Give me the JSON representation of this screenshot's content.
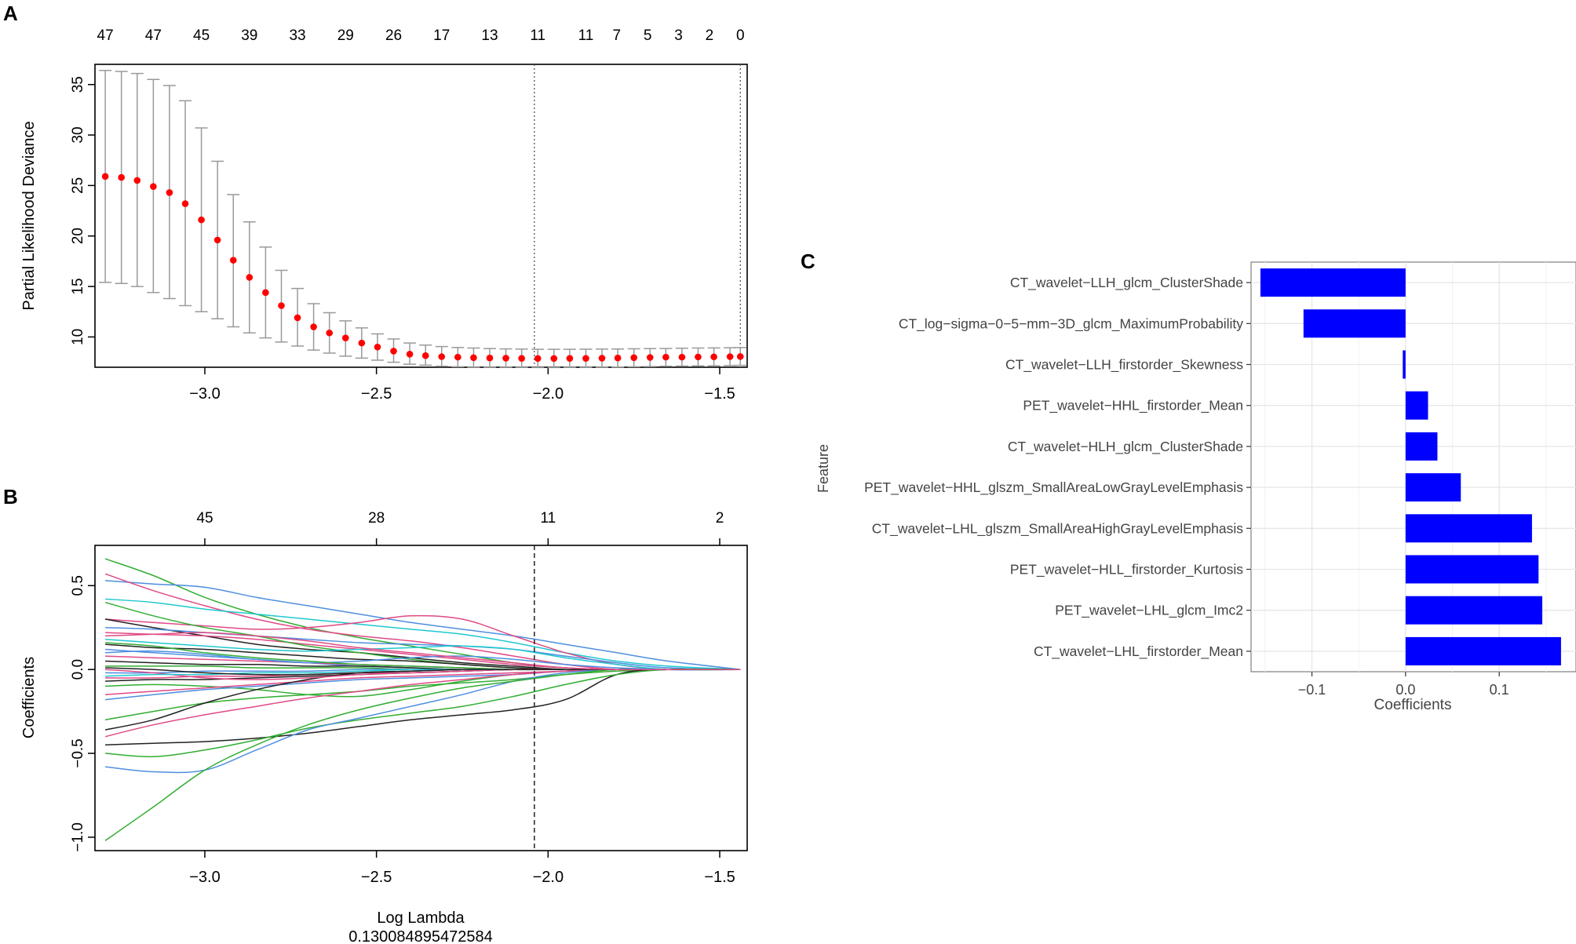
{
  "chart_data": [
    {
      "panel": "A",
      "type": "scatter",
      "subtype": "cross-validation error bars",
      "xlabel": "",
      "ylabel": "Partial Likelihood Deviance",
      "xlim": [
        -3.32,
        -1.42
      ],
      "ylim": [
        7.0,
        37.0
      ],
      "xticks": [
        -3.0,
        -2.5,
        -2.0,
        -1.5
      ],
      "xtick_labels": [
        "−3.0",
        "−2.5",
        "−2.0",
        "−1.5"
      ],
      "yticks": [
        10,
        15,
        20,
        25,
        30,
        35
      ],
      "top_counts": [
        "47",
        "47",
        "45",
        "39",
        "33",
        "29",
        "26",
        "17",
        "13",
        "11",
        "11",
        "7",
        "5",
        "3",
        "2",
        "0"
      ],
      "top_count_x": [
        -3.29,
        -3.15,
        -3.01,
        -2.87,
        -2.73,
        -2.59,
        -2.45,
        -2.31,
        -2.17,
        -2.03,
        -1.89,
        -1.8,
        -1.71,
        -1.62,
        -1.53,
        -1.44
      ],
      "vlines": [
        -2.04,
        -1.44
      ],
      "x": [
        -3.29,
        -3.243,
        -3.197,
        -3.15,
        -3.103,
        -3.057,
        -3.01,
        -2.963,
        -2.917,
        -2.87,
        -2.823,
        -2.777,
        -2.73,
        -2.683,
        -2.637,
        -2.59,
        -2.543,
        -2.497,
        -2.45,
        -2.403,
        -2.357,
        -2.31,
        -2.263,
        -2.217,
        -2.17,
        -2.123,
        -2.077,
        -2.03,
        -1.983,
        -1.937,
        -1.89,
        -1.843,
        -1.797,
        -1.75,
        -1.703,
        -1.657,
        -1.61,
        -1.563,
        -1.517,
        -1.47,
        -1.44
      ],
      "mean": [
        25.9,
        25.8,
        25.5,
        24.9,
        24.3,
        23.2,
        21.6,
        19.6,
        17.6,
        15.9,
        14.4,
        13.1,
        11.9,
        11.0,
        10.4,
        9.9,
        9.4,
        9.0,
        8.6,
        8.3,
        8.15,
        8.05,
        8.0,
        7.95,
        7.92,
        7.9,
        7.88,
        7.87,
        7.87,
        7.88,
        7.88,
        7.9,
        7.92,
        7.95,
        7.97,
        8.0,
        8.0,
        8.02,
        8.03,
        8.05,
        8.06
      ],
      "upper": [
        36.4,
        36.3,
        36.1,
        35.5,
        34.9,
        33.4,
        30.7,
        27.4,
        24.1,
        21.4,
        18.9,
        16.6,
        14.8,
        13.3,
        12.4,
        11.6,
        10.9,
        10.3,
        9.8,
        9.4,
        9.2,
        9.05,
        8.95,
        8.9,
        8.85,
        8.82,
        8.8,
        8.78,
        8.78,
        8.78,
        8.79,
        8.8,
        8.81,
        8.83,
        8.85,
        8.86,
        8.88,
        8.9,
        8.91,
        8.93,
        8.94
      ],
      "lower": [
        15.4,
        15.3,
        15.0,
        14.4,
        13.8,
        13.1,
        12.5,
        11.8,
        11.0,
        10.4,
        9.9,
        9.5,
        9.1,
        8.7,
        8.4,
        8.1,
        7.9,
        7.7,
        7.5,
        7.3,
        7.2,
        7.1,
        7.05,
        7.0,
        7.0,
        7.0,
        6.98,
        6.97,
        6.97,
        6.98,
        6.98,
        7.0,
        7.02,
        7.05,
        7.07,
        7.1,
        7.12,
        7.14,
        7.15,
        7.17,
        7.18
      ]
    },
    {
      "panel": "B",
      "type": "line",
      "subtype": "coefficient paths",
      "xlabel": "Log Lambda",
      "xlabel2": "0.130084895472584",
      "ylabel": "Coefficients",
      "xlim": [
        -3.32,
        -1.42
      ],
      "ylim": [
        -1.08,
        0.74
      ],
      "xticks": [
        -3.0,
        -2.5,
        -2.0,
        -1.5
      ],
      "xtick_labels": [
        "−3.0",
        "−2.5",
        "−2.0",
        "−1.5"
      ],
      "yticks": [
        -1.0,
        -0.5,
        0.0,
        0.5
      ],
      "ytick_labels": [
        "−1.0",
        "−0.5",
        "0.0",
        "0.5"
      ],
      "top_counts": [
        "45",
        "28",
        "11",
        "2"
      ],
      "top_count_x": [
        -3.0,
        -2.5,
        -2.0,
        -1.5
      ],
      "vline": -2.04,
      "x": [
        -3.29,
        -3.15,
        -3.0,
        -2.85,
        -2.7,
        -2.55,
        -2.4,
        -2.25,
        -2.1,
        -1.95,
        -1.8,
        -1.65,
        -1.44
      ],
      "series": [
        {
          "name": "s1",
          "color": "#32ad32",
          "values": [
            0.66,
            0.56,
            0.43,
            0.33,
            0.25,
            0.19,
            0.14,
            0.09,
            0.04,
            0.01,
            0.0,
            0.0,
            0.0
          ]
        },
        {
          "name": "s2",
          "color": "#4e8fe0",
          "values": [
            0.53,
            0.51,
            0.49,
            0.43,
            0.38,
            0.33,
            0.28,
            0.24,
            0.2,
            0.15,
            0.1,
            0.05,
            0.0
          ]
        },
        {
          "name": "s3",
          "color": "#e04a86",
          "values": [
            0.57,
            0.47,
            0.38,
            0.3,
            0.24,
            0.2,
            0.17,
            0.13,
            0.08,
            0.03,
            0.0,
            0.0,
            0.0
          ]
        },
        {
          "name": "s4",
          "color": "#20c8d0",
          "values": [
            0.42,
            0.4,
            0.36,
            0.33,
            0.3,
            0.27,
            0.24,
            0.21,
            0.16,
            0.1,
            0.05,
            0.02,
            0.0
          ]
        },
        {
          "name": "s5",
          "color": "#e04a86",
          "values": [
            0.3,
            0.28,
            0.26,
            0.24,
            0.25,
            0.28,
            0.32,
            0.3,
            0.2,
            0.1,
            0.03,
            0.0,
            0.0
          ]
        },
        {
          "name": "s6",
          "color": "#222222",
          "values": [
            0.3,
            0.25,
            0.2,
            0.15,
            0.12,
            0.1,
            0.07,
            0.04,
            0.02,
            0.0,
            0.0,
            0.0,
            0.0
          ]
        },
        {
          "name": "s7",
          "color": "#4e8fe0",
          "values": [
            0.25,
            0.24,
            0.22,
            0.2,
            0.18,
            0.16,
            0.15,
            0.14,
            0.12,
            0.08,
            0.04,
            0.01,
            0.0
          ]
        },
        {
          "name": "s8",
          "color": "#e04a86",
          "values": [
            0.22,
            0.21,
            0.2,
            0.18,
            0.15,
            0.12,
            0.09,
            0.06,
            0.03,
            0.01,
            0.0,
            0.0,
            0.0
          ]
        },
        {
          "name": "s9",
          "color": "#32ad32",
          "values": [
            0.4,
            0.32,
            0.25,
            0.2,
            0.14,
            0.1,
            0.06,
            0.03,
            0.01,
            0.0,
            0.0,
            0.0,
            0.0
          ]
        },
        {
          "name": "s10",
          "color": "#20c8d0",
          "values": [
            0.18,
            0.16,
            0.14,
            0.12,
            0.11,
            0.12,
            0.13,
            0.14,
            0.12,
            0.07,
            0.03,
            0.0,
            0.0
          ]
        },
        {
          "name": "s11",
          "color": "#222222",
          "values": [
            0.15,
            0.13,
            0.12,
            0.1,
            0.08,
            0.06,
            0.05,
            0.03,
            0.01,
            0.0,
            0.0,
            0.0,
            0.0
          ]
        },
        {
          "name": "s12",
          "color": "#4e8fe0",
          "values": [
            0.12,
            0.1,
            0.08,
            0.06,
            0.04,
            0.02,
            0.01,
            0.0,
            0.0,
            0.0,
            0.0,
            0.0,
            0.0
          ]
        },
        {
          "name": "s13",
          "color": "#e04a86",
          "values": [
            0.08,
            0.07,
            0.06,
            0.05,
            0.04,
            0.03,
            0.02,
            0.01,
            0.0,
            0.0,
            0.0,
            0.0,
            0.0
          ]
        },
        {
          "name": "s14",
          "color": "#222222",
          "values": [
            0.05,
            0.04,
            0.03,
            0.03,
            0.02,
            0.02,
            0.01,
            0.0,
            0.0,
            0.0,
            0.0,
            0.0,
            0.0
          ]
        },
        {
          "name": "s15",
          "color": "#32ad32",
          "values": [
            0.02,
            0.02,
            0.02,
            0.01,
            0.01,
            0.01,
            0.0,
            0.0,
            0.0,
            0.0,
            0.0,
            0.0,
            0.0
          ]
        },
        {
          "name": "s16",
          "color": "#4e8fe0",
          "values": [
            -0.02,
            -0.02,
            -0.01,
            -0.01,
            -0.01,
            0.0,
            0.0,
            0.0,
            0.0,
            0.0,
            0.0,
            0.0,
            0.0
          ]
        },
        {
          "name": "s17",
          "color": "#e04a86",
          "values": [
            -0.05,
            -0.05,
            -0.04,
            -0.04,
            -0.03,
            -0.02,
            -0.02,
            -0.01,
            0.0,
            0.0,
            0.0,
            0.0,
            0.0
          ]
        },
        {
          "name": "s18",
          "color": "#222222",
          "values": [
            -0.07,
            -0.06,
            -0.06,
            -0.05,
            -0.04,
            -0.03,
            -0.02,
            -0.01,
            0.0,
            0.0,
            0.0,
            0.0,
            0.0
          ]
        },
        {
          "name": "s19",
          "color": "#32ad32",
          "values": [
            -0.1,
            -0.09,
            -0.1,
            -0.12,
            -0.15,
            -0.16,
            -0.12,
            -0.07,
            -0.03,
            -0.01,
            0.0,
            0.0,
            0.0
          ]
        },
        {
          "name": "s20",
          "color": "#e04a86",
          "values": [
            -0.15,
            -0.13,
            -0.11,
            -0.09,
            -0.07,
            -0.05,
            -0.04,
            -0.03,
            -0.02,
            -0.01,
            0.0,
            0.0,
            0.0
          ]
        },
        {
          "name": "s21",
          "color": "#4e8fe0",
          "values": [
            -0.18,
            -0.15,
            -0.12,
            -0.1,
            -0.08,
            -0.06,
            -0.05,
            -0.04,
            -0.03,
            -0.01,
            0.0,
            0.0,
            0.0
          ]
        },
        {
          "name": "s22",
          "color": "#32ad32",
          "values": [
            -0.3,
            -0.25,
            -0.2,
            -0.17,
            -0.15,
            -0.13,
            -0.1,
            -0.08,
            -0.06,
            -0.03,
            -0.01,
            0.0,
            0.0
          ]
        },
        {
          "name": "s23",
          "color": "#e04a86",
          "values": [
            -0.4,
            -0.33,
            -0.27,
            -0.22,
            -0.17,
            -0.13,
            -0.09,
            -0.06,
            -0.03,
            -0.01,
            0.0,
            0.0,
            0.0
          ]
        },
        {
          "name": "s24",
          "color": "#222222",
          "values": [
            -0.36,
            -0.3,
            -0.2,
            -0.12,
            -0.06,
            -0.02,
            -0.01,
            0.0,
            0.0,
            0.0,
            0.0,
            0.0,
            0.0
          ]
        },
        {
          "name": "s25",
          "color": "#222222",
          "values": [
            -0.45,
            -0.44,
            -0.43,
            -0.41,
            -0.38,
            -0.34,
            -0.3,
            -0.27,
            -0.24,
            -0.18,
            -0.03,
            0.0,
            0.0
          ]
        },
        {
          "name": "s26",
          "color": "#32ad32",
          "values": [
            -0.5,
            -0.52,
            -0.48,
            -0.42,
            -0.35,
            -0.3,
            -0.26,
            -0.22,
            -0.16,
            -0.09,
            -0.03,
            0.0,
            0.0
          ]
        },
        {
          "name": "s27",
          "color": "#4e8fe0",
          "values": [
            -0.58,
            -0.61,
            -0.6,
            -0.48,
            -0.36,
            -0.29,
            -0.22,
            -0.15,
            -0.07,
            -0.02,
            0.0,
            0.0,
            0.0
          ]
        },
        {
          "name": "s28",
          "color": "#32ad32",
          "values": [
            -1.02,
            -0.82,
            -0.6,
            -0.45,
            -0.33,
            -0.24,
            -0.17,
            -0.11,
            -0.07,
            -0.03,
            0.0,
            0.0,
            0.0
          ]
        },
        {
          "name": "s29",
          "color": "#4e8fe0",
          "values": [
            0.1,
            0.11,
            0.09,
            0.06,
            0.04,
            0.05,
            0.07,
            0.08,
            0.06,
            0.03,
            0.01,
            0.0,
            0.0
          ]
        },
        {
          "name": "s30",
          "color": "#e04a86",
          "values": [
            0.0,
            -0.02,
            -0.05,
            -0.06,
            -0.05,
            -0.03,
            -0.02,
            -0.01,
            0.0,
            0.0,
            0.0,
            0.0,
            0.0
          ]
        },
        {
          "name": "s31",
          "color": "#32ad32",
          "values": [
            0.16,
            0.14,
            0.1,
            0.07,
            0.05,
            0.03,
            0.02,
            0.01,
            0.0,
            0.0,
            0.0,
            0.0,
            0.0
          ]
        },
        {
          "name": "s32",
          "color": "#20c8d0",
          "values": [
            -0.04,
            -0.03,
            -0.03,
            -0.02,
            -0.02,
            -0.01,
            0.0,
            0.0,
            0.0,
            0.0,
            0.0,
            0.0,
            0.0
          ]
        },
        {
          "name": "s33",
          "color": "#222222",
          "values": [
            0.01,
            0.0,
            -0.02,
            -0.03,
            -0.03,
            -0.02,
            -0.01,
            0.0,
            0.0,
            0.0,
            0.0,
            0.0,
            0.0
          ]
        },
        {
          "name": "s34",
          "color": "#e04a86",
          "values": [
            0.2,
            0.21,
            0.22,
            0.2,
            0.17,
            0.13,
            0.1,
            0.07,
            0.04,
            0.01,
            0.0,
            0.0,
            0.0
          ]
        }
      ]
    },
    {
      "panel": "C",
      "type": "bar",
      "orientation": "horizontal",
      "xlabel": "Coefficients",
      "ylabel": "Feature",
      "xlim": [
        -0.165,
        0.182
      ],
      "xticks": [
        -0.1,
        0.0,
        0.1
      ],
      "xtick_labels": [
        "−0.1",
        "0.0",
        "0.1"
      ],
      "bar_color": "#0000ff",
      "categories": [
        "CT_wavelet−LLH_glcm_ClusterShade",
        "CT_log−sigma−0−5−mm−3D_glcm_MaximumProbability",
        "CT_wavelet−LLH_firstorder_Skewness",
        "PET_wavelet−HHL_firstorder_Mean",
        "CT_wavelet−HLH_glcm_ClusterShade",
        "PET_wavelet−HHL_glszm_SmallAreaLowGrayLevelEmphasis",
        "CT_wavelet−LHL_glszm_SmallAreaHighGrayLevelEmphasis",
        "PET_wavelet−HLL_firstorder_Kurtosis",
        "PET_wavelet−LHL_glcm_Imc2",
        "CT_wavelet−LHL_firstorder_Mean"
      ],
      "values": [
        -0.155,
        -0.109,
        -0.003,
        0.024,
        0.034,
        0.059,
        0.135,
        0.142,
        0.146,
        0.166
      ]
    }
  ],
  "panel_labels": {
    "a": "A",
    "b": "B",
    "c": "C"
  }
}
